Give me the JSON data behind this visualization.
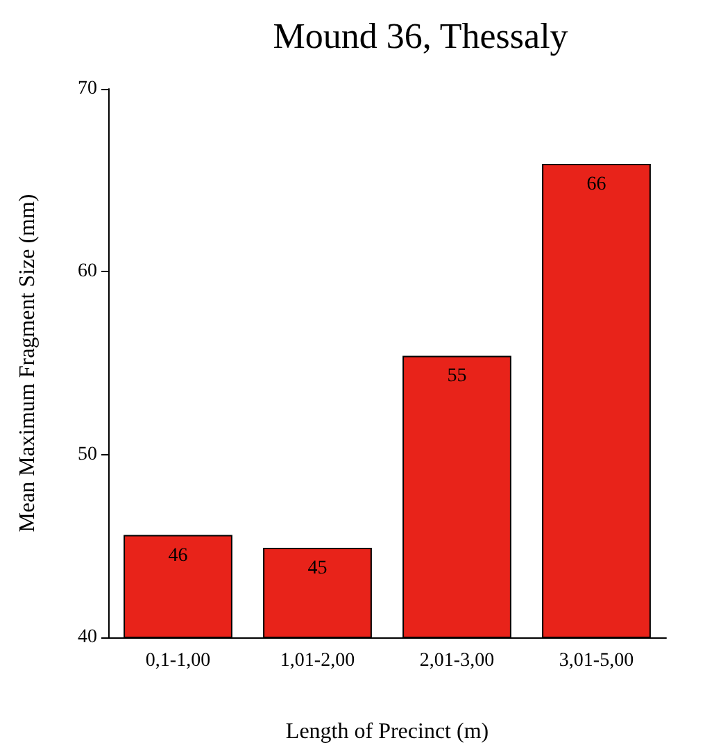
{
  "chart_data": {
    "type": "bar",
    "title": "Mound 36, Thessaly",
    "xlabel": "Length of Precinct (m)",
    "ylabel": "Mean Maximum Fragment Size (mm)",
    "categories": [
      "0,1-1,00",
      "1,01-2,00",
      "2,01-3,00",
      "3,01-5,00"
    ],
    "values": [
      45.6,
      44.9,
      55.4,
      65.9
    ],
    "value_labels": [
      "46",
      "45",
      "55",
      "66"
    ],
    "color": "#e8231a",
    "ylim": [
      40,
      70
    ],
    "yticks": [
      40,
      50,
      60,
      70
    ],
    "grid": false
  }
}
